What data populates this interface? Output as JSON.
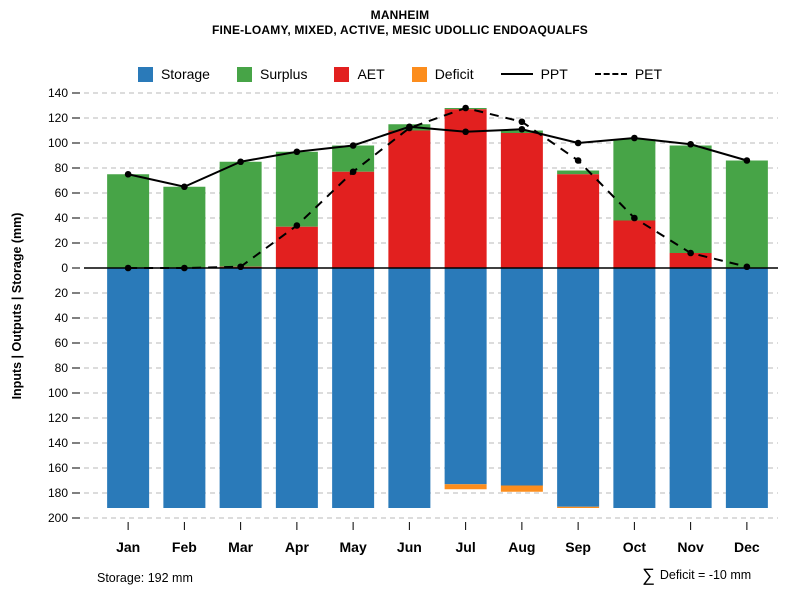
{
  "title": "MANHEIM",
  "subtitle": "FINE-LOAMY, MIXED, ACTIVE, MESIC UDOLLIC ENDOAQUALFS",
  "footer": {
    "storage_label": "Storage: 192 mm",
    "deficit_sigma": "∑",
    "deficit_label": "Deficit = -10 mm"
  },
  "chart_data": {
    "type": "bar",
    "subtype": "stacked-water-balance-with-line-overlays",
    "title": "MANHEIM",
    "subtitle": "FINE-LOAMY, MIXED, ACTIVE, MESIC UDOLLIC ENDOAQUALFS",
    "categories": [
      "Jan",
      "Feb",
      "Mar",
      "Apr",
      "May",
      "Jun",
      "Jul",
      "Aug",
      "Sep",
      "Oct",
      "Nov",
      "Dec"
    ],
    "ylabel": "Inputs | Outputs | Storage  (mm)",
    "y_axis": {
      "upper_max": 140,
      "lower_max": 200,
      "tick_step": 20
    },
    "grid": true,
    "legend_position": "top",
    "series": [
      {
        "name": "Storage",
        "type": "bar",
        "direction": "down",
        "color": "#2A7AB9",
        "values": [
          192,
          192,
          192,
          192,
          192,
          192,
          173,
          174,
          191,
          192,
          192,
          192
        ]
      },
      {
        "name": "Surplus",
        "type": "bar",
        "direction": "up",
        "color": "#47A447",
        "values": [
          75,
          65,
          84,
          60,
          21,
          5,
          1,
          2,
          3,
          65,
          86,
          86
        ]
      },
      {
        "name": "AET",
        "type": "bar",
        "direction": "up",
        "color": "#E2201F",
        "values": [
          0,
          0,
          1,
          33,
          77,
          110,
          127,
          108,
          75,
          38,
          12,
          0
        ]
      },
      {
        "name": "Deficit",
        "type": "bar",
        "direction": "down",
        "color": "#FC8D1D",
        "values": [
          0,
          0,
          0,
          0,
          0,
          0,
          4,
          5,
          1,
          0,
          0,
          0
        ]
      },
      {
        "name": "PPT",
        "type": "line",
        "style": "solid",
        "color": "#000000",
        "values": [
          75,
          65,
          85,
          93,
          98,
          113,
          109,
          111,
          100,
          104,
          99,
          86
        ]
      },
      {
        "name": "PET",
        "type": "line",
        "style": "dashed",
        "color": "#000000",
        "values": [
          0,
          0,
          1,
          34,
          77,
          112,
          128,
          117,
          86,
          40,
          12,
          1
        ]
      }
    ],
    "annotations": [
      "Storage: 192 mm",
      "∑ Deficit = -10 mm"
    ]
  }
}
